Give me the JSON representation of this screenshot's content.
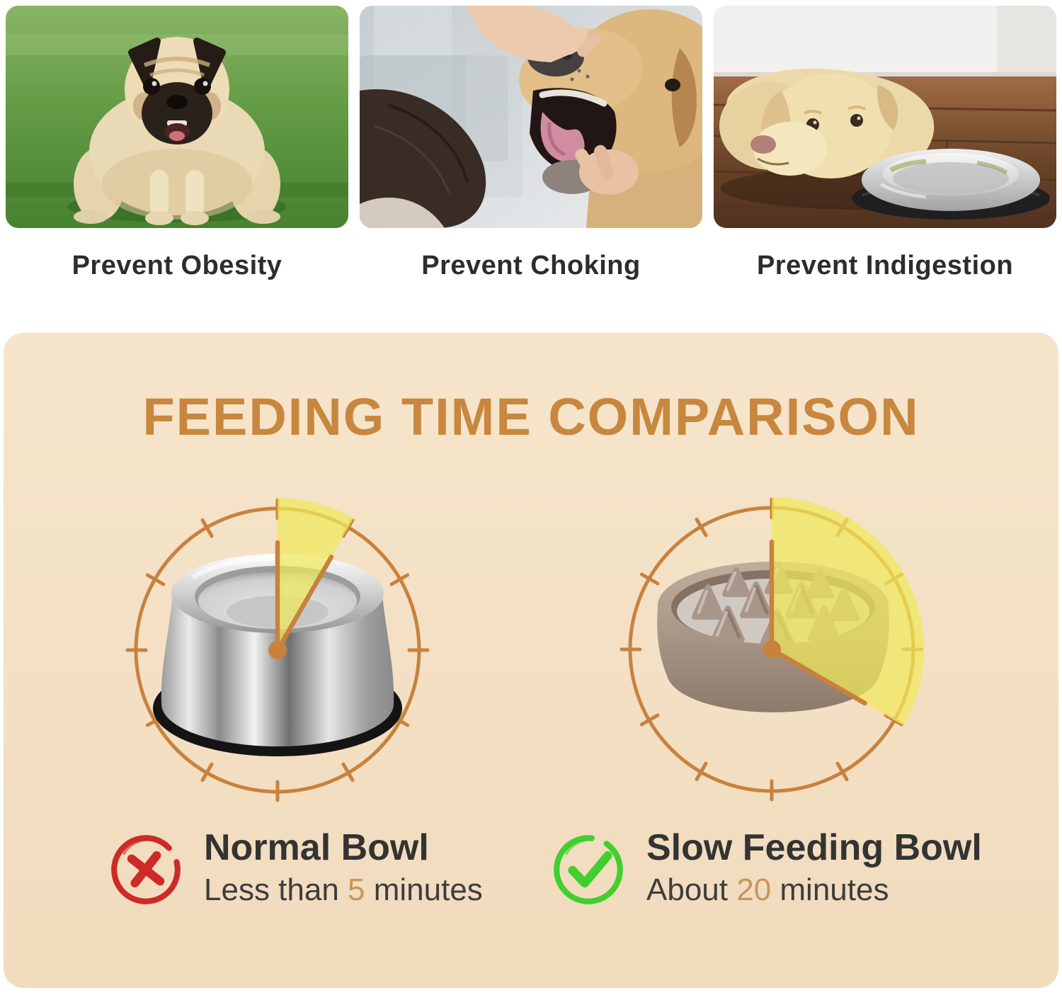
{
  "top_row": {
    "cards": [
      {
        "caption": "Prevent Obesity",
        "photo": "obese pug dog standing on green grass"
      },
      {
        "caption": "Prevent Choking",
        "photo": "owner opening golden retriever mouth to check throat"
      },
      {
        "caption": "Prevent Indigestion",
        "photo": "labrador lying on wooden floor beside empty steel bowl"
      }
    ]
  },
  "panel": {
    "title": "FEEDING TIME COMPARISON",
    "clocks": [
      {
        "name": "normal-bowl-clock",
        "bowl": "stainless steel bowl",
        "minutes": 5
      },
      {
        "name": "slow-feeding-bowl-clock",
        "bowl": "slow feeder maze bowl",
        "minutes": 20
      }
    ],
    "legends": [
      {
        "icon": "cross-icon",
        "title": "Normal Bowl",
        "sub_prefix": "Less than ",
        "sub_value": "5",
        "sub_suffix": " minutes"
      },
      {
        "icon": "check-icon",
        "title": "Slow Feeding Bowl",
        "sub_prefix": "About ",
        "sub_value": "20",
        "sub_suffix": " minutes"
      }
    ],
    "colors": {
      "panel_bg_top": "#f6e5cb",
      "panel_bg_bottom": "#f1dbbd",
      "heading": "#c8873f",
      "clock_line": "#c8823e",
      "wedge_fill": "#f0e95a",
      "wedge_opacity": 0.72,
      "caption_text": "#2d2d2d",
      "legend_title_text": "#333333",
      "legend_sub_text": "#3d3d3d",
      "number_accent": "#c9955a",
      "cross_red": "#ce2a28",
      "check_green": "#41cf2e"
    }
  }
}
